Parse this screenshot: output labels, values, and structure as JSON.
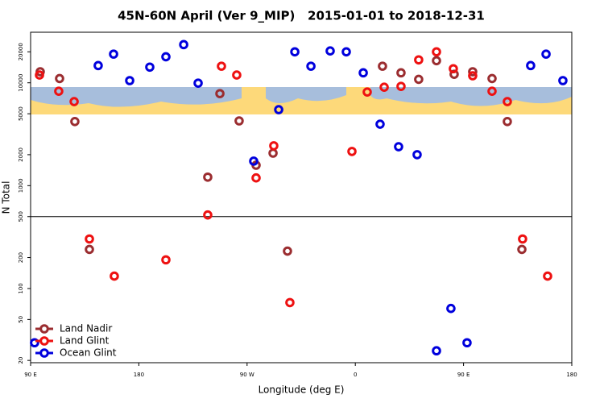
{
  "chart_data": {
    "type": "scatter",
    "title": "45N-60N April (Ver 9_MIP)   2015-01-01 to 2018-12-31",
    "xlabel": "Longitude (deg E)",
    "ylabel": "N Total",
    "xlim": [
      90,
      540
    ],
    "xticks": [
      {
        "value": 90,
        "label": "90 E"
      },
      180,
      {
        "value": 270,
        "label": "90 W"
      },
      {
        "value": 360,
        "label": "0"
      },
      {
        "value": 450,
        "label": "90 E"
      },
      {
        "value": 540,
        "label": "180"
      }
    ],
    "ylim": [
      19,
      31000
    ],
    "log_y": true,
    "yticks": [
      20,
      50,
      100,
      200,
      500,
      1000,
      2000,
      5000,
      10000,
      20000
    ],
    "reference_line": 500,
    "legend": "lower left",
    "series": [
      {
        "name": "Land Nadir",
        "color": "#9b2d30",
        "x": [
          98.0,
          114.1,
          126.8,
          138.9,
          237.3,
          247.4,
          263.4,
          277.5,
          291.6,
          303.6,
          382.6,
          398.0,
          412.7,
          427.5,
          442.2,
          457.6,
          473.7,
          486.4,
          498.5
        ],
        "values": [
          12800,
          11000,
          4200,
          240,
          1210,
          7850,
          4260,
          1580,
          2070,
          231,
          14500,
          12500,
          10800,
          16400,
          12100,
          12800,
          11000,
          4200,
          240
        ]
      },
      {
        "name": "Land Glint",
        "color": "#ee1111",
        "x": [
          97.4,
          113.4,
          126.2,
          138.9,
          159.6,
          202.5,
          237.3,
          248.7,
          261.4,
          277.5,
          292.2,
          305.6,
          357.2,
          369.9,
          384.0,
          398.0,
          412.7,
          427.5,
          441.5,
          457.6,
          473.7,
          486.4,
          499.1,
          519.9
        ],
        "values": [
          11900,
          8280,
          6560,
          303,
          132,
          190,
          519,
          14500,
          11900,
          1190,
          2440,
          73,
          2150,
          8130,
          9060,
          9230,
          16700,
          20000,
          13700,
          11700,
          8280,
          6560,
          303,
          132
        ]
      },
      {
        "name": "Ocean Glint",
        "color": "#0000dd",
        "x": [
          93.3,
          146.2,
          159.0,
          172.4,
          189.1,
          202.5,
          217.3,
          229.3,
          275.5,
          296.3,
          309.7,
          323.1,
          339.1,
          352.5,
          366.6,
          380.6,
          396.0,
          411.4,
          427.5,
          439.5,
          452.9,
          505.8,
          518.6,
          532.6
        ],
        "values": [
          29.7,
          14700,
          19000,
          10500,
          14200,
          17900,
          23500,
          9920,
          1730,
          5480,
          20000,
          14500,
          20400,
          20000,
          12500,
          3960,
          2390,
          2000,
          24.8,
          64,
          29.7,
          14700,
          19000,
          10500
        ]
      }
    ]
  }
}
